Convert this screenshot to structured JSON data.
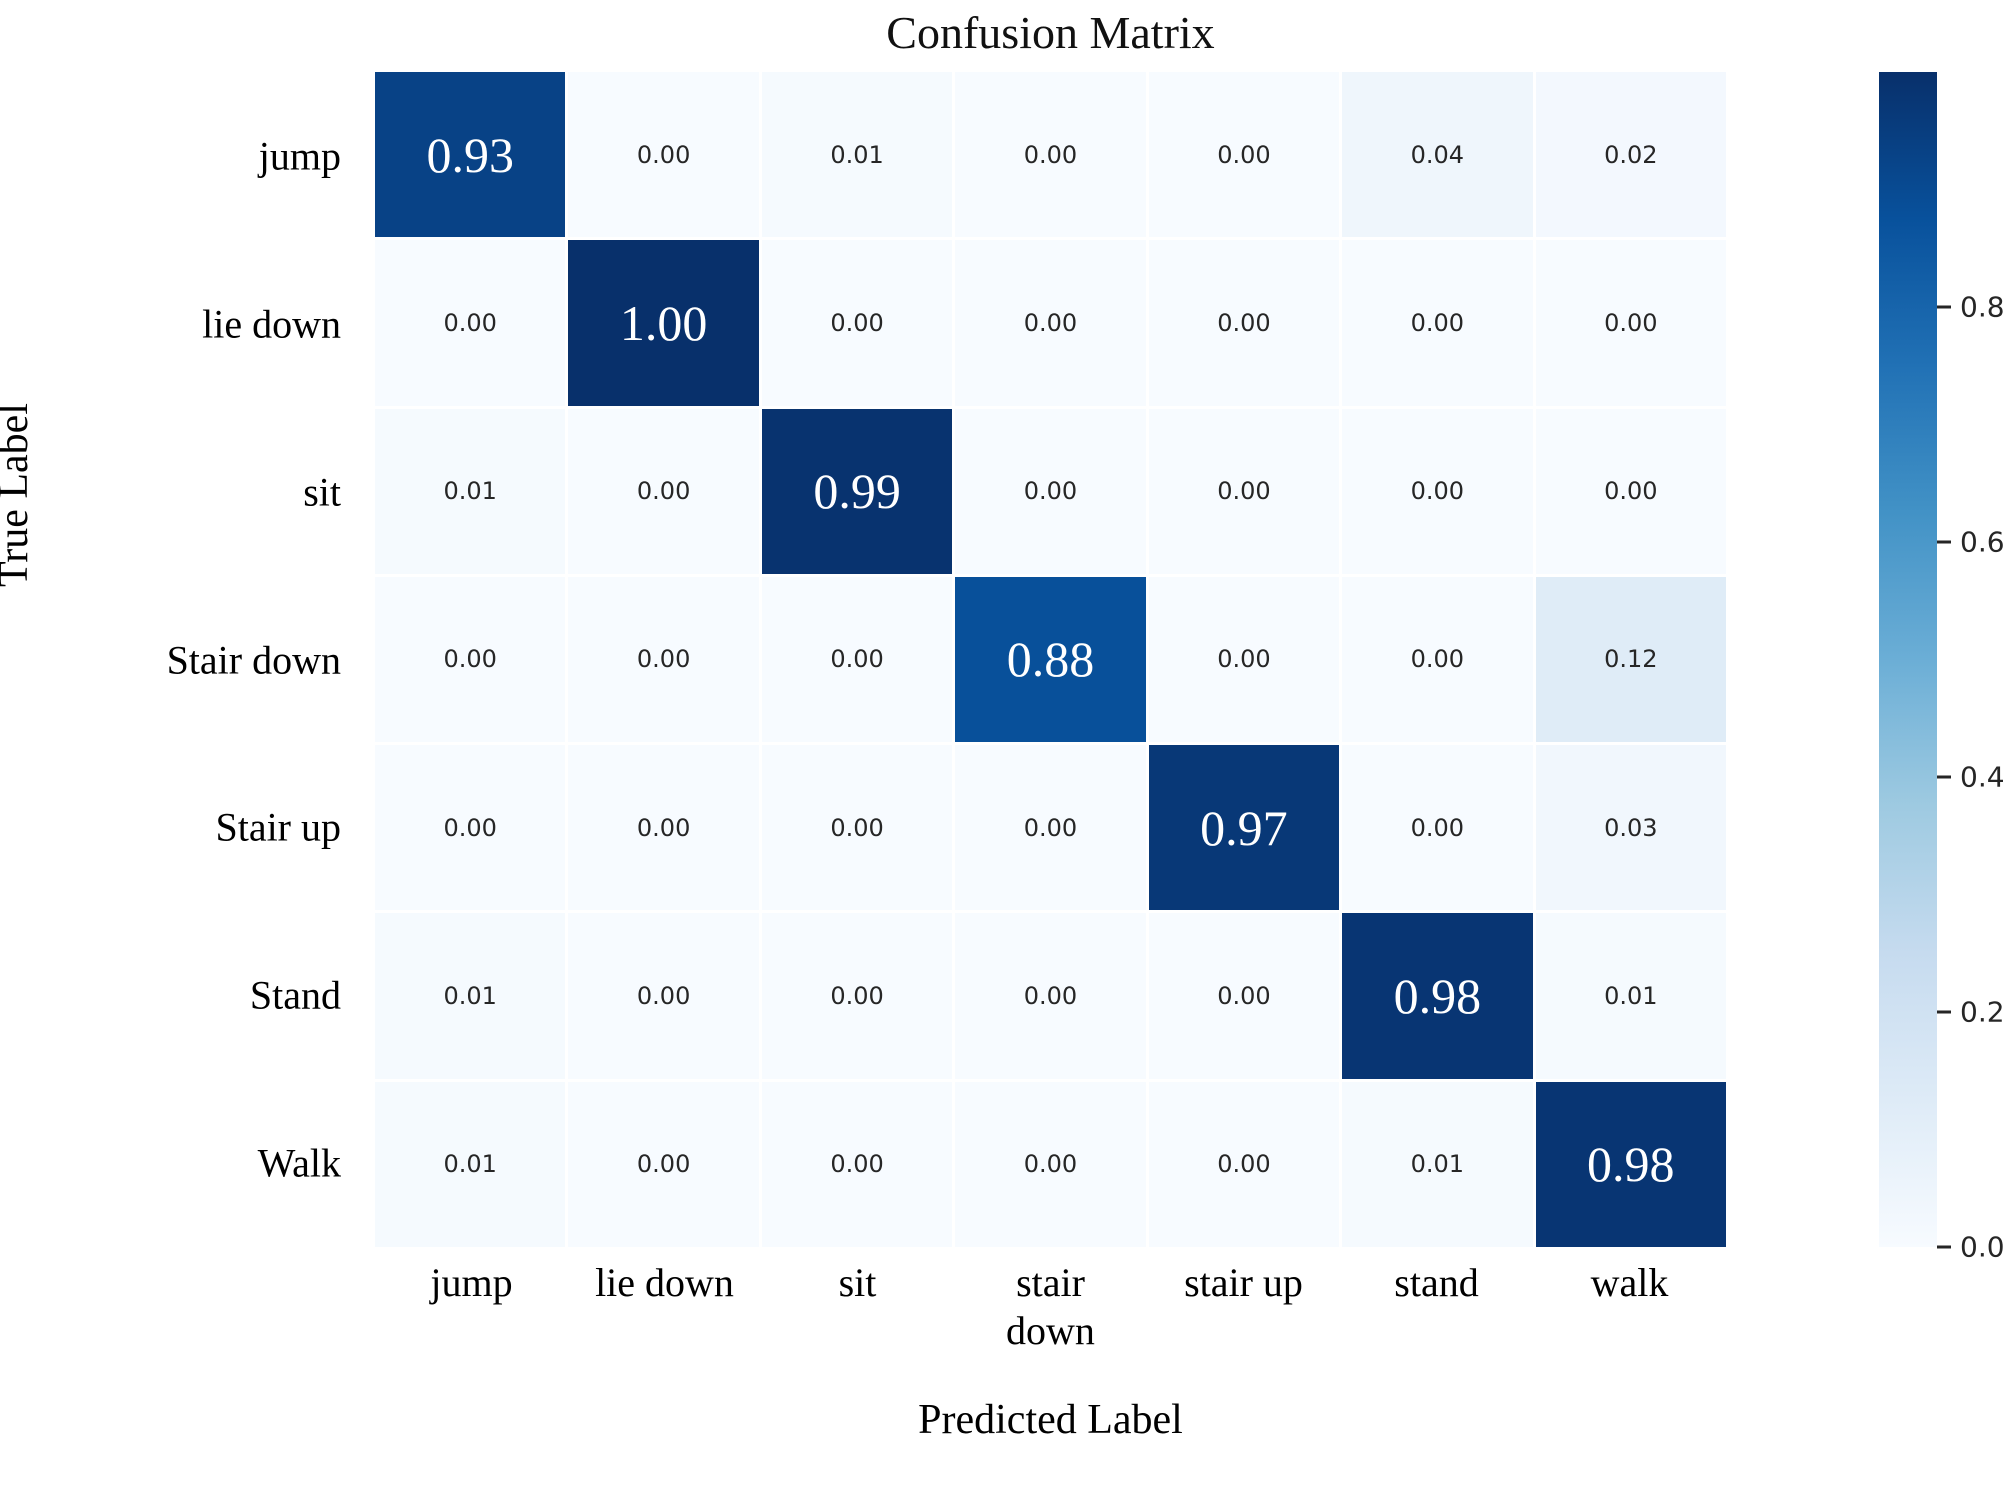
{
  "chart_data": {
    "type": "heatmap",
    "title": "Confusion Matrix",
    "xlabel": "Predicted Label",
    "ylabel": "True Label",
    "x_categories": [
      "jump",
      "lie down",
      "sit",
      "stair down",
      "stair up",
      "stand",
      "walk"
    ],
    "y_categories": [
      "jump",
      "lie down",
      "sit",
      "Stair down",
      "Stair up",
      "Stand",
      "Walk"
    ],
    "values": [
      [
        0.93,
        0.0,
        0.01,
        0.0,
        0.0,
        0.04,
        0.02
      ],
      [
        0.0,
        1.0,
        0.0,
        0.0,
        0.0,
        0.0,
        0.0
      ],
      [
        0.01,
        0.0,
        0.99,
        0.0,
        0.0,
        0.0,
        0.0
      ],
      [
        0.0,
        0.0,
        0.0,
        0.88,
        0.0,
        0.0,
        0.12
      ],
      [
        0.0,
        0.0,
        0.0,
        0.0,
        0.97,
        0.0,
        0.03
      ],
      [
        0.01,
        0.0,
        0.0,
        0.0,
        0.0,
        0.98,
        0.01
      ],
      [
        0.01,
        0.0,
        0.0,
        0.0,
        0.0,
        0.01,
        0.98
      ]
    ],
    "value_format_decimals": 2,
    "vmin": 0.0,
    "vmax": 1.0,
    "colormap": "Blues",
    "colormap_stops": [
      {
        "pos": 0.0,
        "color": "#f7fbff"
      },
      {
        "pos": 0.125,
        "color": "#deebf7"
      },
      {
        "pos": 0.25,
        "color": "#c6dbef"
      },
      {
        "pos": 0.375,
        "color": "#9ecae1"
      },
      {
        "pos": 0.5,
        "color": "#6baed6"
      },
      {
        "pos": 0.625,
        "color": "#4292c6"
      },
      {
        "pos": 0.75,
        "color": "#2171b5"
      },
      {
        "pos": 0.875,
        "color": "#08519c"
      },
      {
        "pos": 1.0,
        "color": "#08306b"
      }
    ],
    "annotation_dark_text_color": "#262626",
    "annotation_light_text_color": "#ffffff",
    "grid_line_color": "#ffffff",
    "colorbar": {
      "position": "right",
      "tick_labels": [
        "0.8",
        "0.6",
        "0.4",
        "0.2",
        "0.0"
      ],
      "tick_values": [
        0.8,
        0.6,
        0.4,
        0.2,
        0.0
      ]
    }
  }
}
